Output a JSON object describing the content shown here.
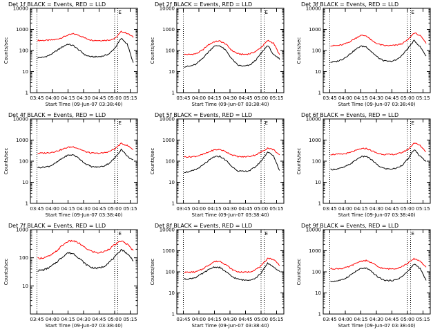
{
  "chart_data": [
    {
      "type": "line",
      "title": "Det 1f BLACK = Events, RED = LLD",
      "xlabel": "Start Time (09-Jun-07 03:38:40)",
      "ylabel": "Counts/sec",
      "yscale": "log",
      "ylim": [
        1,
        10000
      ],
      "x_ticks": [
        "03:45",
        "04:00",
        "04:15",
        "04:30",
        "04:45",
        "05:00",
        "05:15"
      ],
      "y_ticks": [
        "1",
        "10",
        "100",
        "1000",
        "10000"
      ],
      "markers": [
        "03:45",
        "05:00",
        "05:03"
      ],
      "flag": "E",
      "series": [
        {
          "color": "#ff0000",
          "values": [
            300,
            300,
            305,
            330,
            400,
            530,
            620,
            520,
            380,
            310,
            300,
            300,
            315,
            380,
            800,
            650,
            430
          ]
        },
        {
          "color": "#000000",
          "values": [
            45,
            48,
            60,
            90,
            140,
            200,
            170,
            100,
            60,
            50,
            50,
            55,
            70,
            140,
            380,
            200,
            25
          ]
        }
      ]
    },
    {
      "type": "line",
      "title": "Det 2f BLACK = Events, RED = LLD",
      "xlabel": "Start Time (09-Jun-07 03:38:40)",
      "ylabel": "Counts/sec",
      "yscale": "log",
      "ylim": [
        1,
        10000
      ],
      "x_ticks": [
        "03:45",
        "04:00",
        "04:15",
        "04:30",
        "04:45",
        "05:00",
        "05:15"
      ],
      "y_ticks": [
        "1",
        "10",
        "100",
        "1000",
        "10000"
      ],
      "markers": [
        "03:45",
        "05:00",
        "05:03"
      ],
      "flag": "E",
      "series": [
        {
          "color": "#ff0000",
          "values": [
            65,
            65,
            70,
            100,
            180,
            260,
            280,
            200,
            100,
            70,
            65,
            70,
            90,
            150,
            300,
            220,
            60
          ]
        },
        {
          "color": "#000000",
          "values": [
            17,
            18,
            22,
            40,
            80,
            160,
            170,
            100,
            40,
            20,
            18,
            20,
            35,
            80,
            180,
            60,
            40
          ]
        }
      ]
    },
    {
      "type": "line",
      "title": "Det 3f BLACK = Events, RED = LLD",
      "xlabel": "Start Time (09-Jun-07 03:38:40)",
      "ylabel": "Counts/sec",
      "yscale": "log",
      "ylim": [
        1,
        10000
      ],
      "x_ticks": [
        "03:45",
        "04:00",
        "04:15",
        "04:30",
        "04:45",
        "05:00",
        "05:15"
      ],
      "y_ticks": [
        "1",
        "10",
        "100",
        "1000",
        "10000"
      ],
      "markers": [
        "03:45",
        "05:00",
        "05:03"
      ],
      "flag": "E",
      "series": [
        {
          "color": "#ff0000",
          "values": [
            170,
            170,
            185,
            240,
            350,
            520,
            500,
            280,
            200,
            170,
            170,
            180,
            210,
            330,
            700,
            500,
            230
          ]
        },
        {
          "color": "#000000",
          "values": [
            28,
            30,
            38,
            60,
            100,
            160,
            150,
            80,
            45,
            32,
            30,
            35,
            60,
            130,
            300,
            150,
            55
          ]
        }
      ]
    },
    {
      "type": "line",
      "title": "Det 4f BLACK = Events, RED = LLD",
      "xlabel": "Start Time (09-Jun-07 03:38:40)",
      "ylabel": "Counts/sec",
      "yscale": "log",
      "ylim": [
        1,
        10000
      ],
      "x_ticks": [
        "03:45",
        "04:00",
        "04:15",
        "04:30",
        "04:45",
        "05:00",
        "05:15"
      ],
      "y_ticks": [
        "1",
        "10",
        "100",
        "1000",
        "10000"
      ],
      "markers": [
        "03:45",
        "05:00",
        "05:03"
      ],
      "flag": "E",
      "series": [
        {
          "color": "#ff0000",
          "values": [
            240,
            240,
            255,
            290,
            350,
            450,
            480,
            380,
            280,
            240,
            235,
            245,
            290,
            400,
            700,
            550,
            360
          ]
        },
        {
          "color": "#000000",
          "values": [
            50,
            52,
            58,
            80,
            130,
            190,
            200,
            130,
            75,
            55,
            52,
            58,
            80,
            150,
            370,
            170,
            110
          ]
        }
      ]
    },
    {
      "type": "line",
      "title": "Det 5f BLACK = Events, RED = LLD",
      "xlabel": "Start Time (09-Jun-07 03:38:40)",
      "ylabel": "Counts/sec",
      "yscale": "log",
      "ylim": [
        1,
        10000
      ],
      "x_ticks": [
        "03:45",
        "04:00",
        "04:15",
        "04:30",
        "04:45",
        "05:00",
        "05:15"
      ],
      "y_ticks": [
        "1",
        "10",
        "100",
        "1000",
        "10000"
      ],
      "markers": [
        "03:45",
        "05:00",
        "05:03"
      ],
      "flag": "E",
      "series": [
        {
          "color": "#ff0000",
          "values": [
            160,
            160,
            170,
            200,
            260,
            340,
            360,
            280,
            200,
            165,
            160,
            170,
            200,
            280,
            420,
            350,
            190
          ]
        },
        {
          "color": "#000000",
          "values": [
            30,
            32,
            40,
            60,
            100,
            160,
            170,
            110,
            55,
            35,
            32,
            36,
            55,
            110,
            280,
            170,
            35
          ]
        }
      ]
    },
    {
      "type": "line",
      "title": "Det 6f BLACK = Events, RED = LLD",
      "xlabel": "Start Time (09-Jun-07 03:38:40)",
      "ylabel": "Counts/sec",
      "yscale": "log",
      "ylim": [
        1,
        10000
      ],
      "x_ticks": [
        "03:45",
        "04:00",
        "04:15",
        "04:30",
        "04:45",
        "05:00",
        "05:15"
      ],
      "y_ticks": [
        "1",
        "10",
        "100",
        "1000",
        "10000"
      ],
      "markers": [
        "03:45",
        "05:00",
        "05:03"
      ],
      "flag": "E",
      "series": [
        {
          "color": "#ff0000",
          "values": [
            210,
            210,
            215,
            240,
            300,
            380,
            400,
            300,
            230,
            210,
            205,
            215,
            260,
            360,
            750,
            550,
            280
          ]
        },
        {
          "color": "#000000",
          "values": [
            40,
            42,
            48,
            65,
            100,
            160,
            170,
            110,
            60,
            45,
            42,
            46,
            65,
            130,
            360,
            170,
            95
          ]
        }
      ]
    },
    {
      "type": "line",
      "title": "Det 7f BLACK = Events, RED = LLD",
      "xlabel": "Start Time (09-Jun-07 03:38:40)",
      "ylabel": "Counts/sec",
      "yscale": "log",
      "ylim": [
        1,
        1000
      ],
      "x_ticks": [
        "03:45",
        "04:00",
        "04:15",
        "04:30",
        "04:45",
        "05:00",
        "05:15"
      ],
      "y_ticks": [
        "10",
        "100",
        "1000"
      ],
      "markers": [
        "03:45",
        "05:00",
        "05:03"
      ],
      "flag": "E",
      "series": [
        {
          "color": "#ff0000",
          "values": [
            95,
            100,
            115,
            160,
            260,
            380,
            400,
            320,
            220,
            170,
            150,
            160,
            210,
            300,
            400,
            300,
            180
          ]
        },
        {
          "color": "#000000",
          "values": [
            35,
            37,
            45,
            65,
            100,
            150,
            140,
            95,
            60,
            45,
            42,
            48,
            70,
            110,
            200,
            140,
            80
          ]
        }
      ]
    },
    {
      "type": "line",
      "title": "Det 8f BLACK = Events, RED = LLD",
      "xlabel": "Start Time (09-Jun-07 03:38:40)",
      "ylabel": "Counts/sec",
      "yscale": "log",
      "ylim": [
        1,
        10000
      ],
      "x_ticks": [
        "03:45",
        "04:00",
        "04:15",
        "04:30",
        "04:45",
        "05:00",
        "05:15"
      ],
      "y_ticks": [
        "1",
        "10",
        "100",
        "1000",
        "10000"
      ],
      "markers": [
        "03:45",
        "05:00",
        "05:03"
      ],
      "flag": "E",
      "series": [
        {
          "color": "#ff0000",
          "values": [
            95,
            95,
            100,
            130,
            200,
            300,
            320,
            220,
            130,
            100,
            95,
            100,
            130,
            200,
            450,
            380,
            210
          ]
        },
        {
          "color": "#000000",
          "values": [
            45,
            47,
            55,
            80,
            120,
            170,
            160,
            100,
            60,
            45,
            40,
            42,
            50,
            95,
            260,
            170,
            100
          ]
        }
      ]
    },
    {
      "type": "line",
      "title": "Det 9f BLACK = Events, RED = LLD",
      "xlabel": "Start Time (09-Jun-07 03:38:40)",
      "ylabel": "Counts/sec",
      "yscale": "log",
      "ylim": [
        1,
        10000
      ],
      "x_ticks": [
        "03:45",
        "04:00",
        "04:15",
        "04:30",
        "04:45",
        "05:00",
        "05:15"
      ],
      "y_ticks": [
        "1",
        "10",
        "100",
        "1000",
        "10000"
      ],
      "markers": [
        "03:45",
        "05:00",
        "05:03"
      ],
      "flag": "E",
      "series": [
        {
          "color": "#ff0000",
          "values": [
            140,
            140,
            145,
            170,
            230,
            320,
            340,
            260,
            170,
            140,
            138,
            145,
            180,
            260,
            420,
            330,
            160
          ]
        },
        {
          "color": "#000000",
          "values": [
            35,
            37,
            42,
            60,
            95,
            140,
            150,
            95,
            55,
            40,
            38,
            42,
            60,
            110,
            240,
            140,
            40
          ]
        }
      ]
    }
  ]
}
